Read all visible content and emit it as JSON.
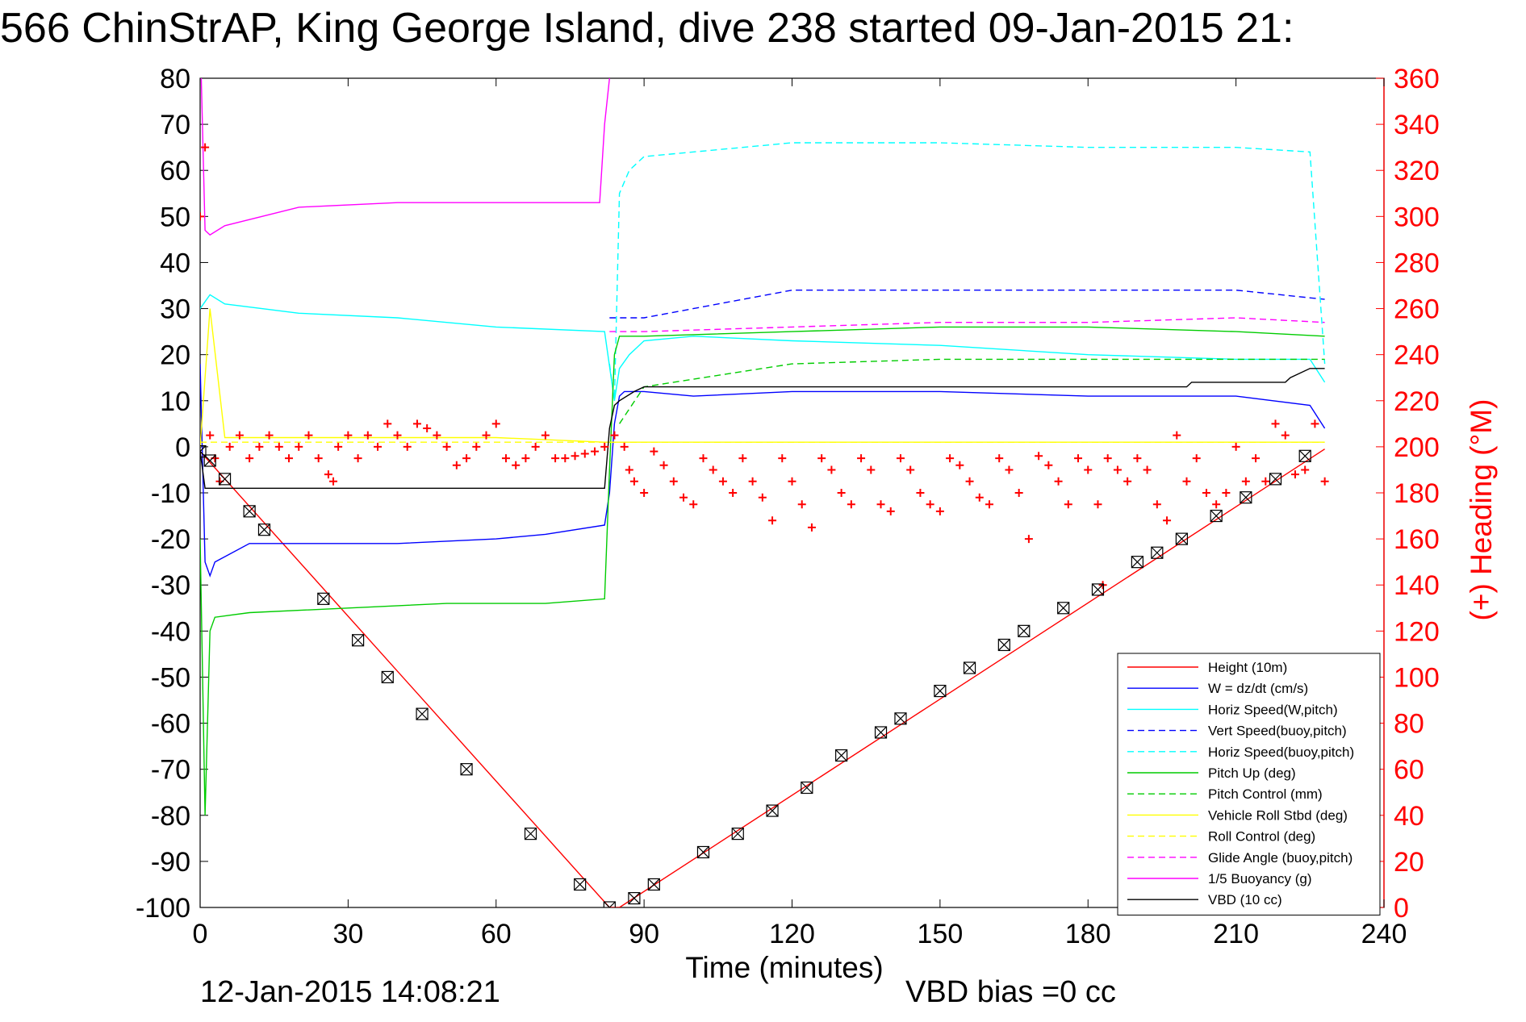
{
  "chart_data": {
    "type": "line",
    "title": "566 ChinStrAP, King George Island, dive 238 started 09-Jan-2015 21:",
    "xlabel": "Time (minutes)",
    "ylabel": "",
    "y2label": "(+) Heading (°M)",
    "xlim": [
      0,
      240
    ],
    "ylim": [
      -100,
      80
    ],
    "y2lim": [
      0,
      360
    ],
    "x_ticks": [
      "0",
      "30",
      "60",
      "90",
      "120",
      "150",
      "180",
      "210",
      "240"
    ],
    "y_ticks": [
      "80",
      "70",
      "60",
      "50",
      "40",
      "30",
      "20",
      "10",
      "0",
      "-10",
      "-20",
      "-30",
      "-40",
      "-50",
      "-60",
      "-70",
      "-80",
      "-90",
      "-100"
    ],
    "y2_ticks": [
      "360",
      "340",
      "320",
      "300",
      "280",
      "260",
      "240",
      "220",
      "200",
      "180",
      "160",
      "140",
      "120",
      "100",
      "80",
      "60",
      "40",
      "20",
      "0"
    ],
    "footer_left": "12-Jan-2015 14:08:21",
    "footer_right": "VBD bias =0 cc",
    "grid": false,
    "legend_position": "lower-right",
    "series": [
      {
        "name": "Height (10m)",
        "color": "#ff0000",
        "style": "solid",
        "x": [
          0,
          83,
          85,
          228
        ],
        "y": [
          -1,
          -100,
          -100,
          -0.5
        ]
      },
      {
        "name": "W = dz/dt (cm/s)",
        "color": "#0000ff",
        "style": "solid",
        "x": [
          0,
          1,
          2,
          3,
          10,
          20,
          40,
          60,
          70,
          82,
          83,
          84,
          85,
          86,
          90,
          100,
          120,
          150,
          180,
          210,
          225,
          228
        ],
        "y": [
          18,
          -25,
          -28,
          -25,
          -21,
          -21,
          -21,
          -20,
          -19,
          -17,
          -10,
          5,
          11,
          12,
          12,
          11,
          12,
          12,
          11,
          11,
          9,
          4
        ]
      },
      {
        "name": "Horiz Speed(W,pitch)",
        "color": "#00ffff",
        "style": "solid",
        "x": [
          0,
          2,
          5,
          20,
          40,
          60,
          82,
          84,
          85,
          87,
          90,
          100,
          120,
          150,
          180,
          210,
          225,
          228
        ],
        "y": [
          30,
          33,
          31,
          29,
          28,
          26,
          25,
          10,
          17,
          20,
          23,
          24,
          23,
          22,
          20,
          19,
          19,
          14
        ]
      },
      {
        "name": "Vert Speed(buoy,pitch)",
        "color": "#0000ff",
        "style": "dashed",
        "x": [
          83,
          85,
          90,
          120,
          150,
          180,
          210,
          228
        ],
        "y": [
          28,
          28,
          28,
          34,
          34,
          34,
          34,
          32
        ]
      },
      {
        "name": "Horiz Speed(buoy,pitch)",
        "color": "#00ffff",
        "style": "dashed",
        "x": [
          83,
          84,
          85,
          87,
          90,
          120,
          150,
          180,
          210,
          225,
          228
        ],
        "y": [
          18,
          10,
          55,
          60,
          63,
          66,
          66,
          65,
          65,
          64,
          18
        ]
      },
      {
        "name": "Pitch Up (deg)",
        "color": "#00cc00",
        "style": "solid",
        "x": [
          0,
          1,
          2,
          3,
          10,
          30,
          50,
          70,
          82,
          83,
          84,
          85,
          90,
          120,
          150,
          180,
          210,
          228
        ],
        "y": [
          -20,
          -80,
          -40,
          -37,
          -36,
          -35,
          -34,
          -34,
          -33,
          -5,
          20,
          24,
          24,
          25,
          26,
          26,
          25,
          24
        ]
      },
      {
        "name": "Pitch Control (mm)",
        "color": "#00cc00",
        "style": "dashed",
        "x": [
          85,
          90,
          120,
          150,
          180,
          210,
          228
        ],
        "y": [
          5,
          13,
          18,
          19,
          19,
          19,
          19
        ]
      },
      {
        "name": "Vehicle Roll Stbd (deg)",
        "color": "#ffff00",
        "style": "solid",
        "x": [
          0,
          2,
          5,
          10,
          30,
          60,
          82,
          85,
          90,
          120,
          150,
          180,
          210,
          228
        ],
        "y": [
          0,
          30,
          2,
          2,
          2,
          2,
          1,
          1,
          1,
          1,
          1,
          1,
          1,
          1
        ]
      },
      {
        "name": "Roll Control (deg)",
        "color": "#ffff00",
        "style": "dashed",
        "x": [
          0,
          82,
          83,
          228
        ],
        "y": [
          1,
          1,
          1,
          1
        ]
      },
      {
        "name": "Glide Angle (buoy,pitch)",
        "color": "#ff00ff",
        "style": "dashed",
        "x": [
          83,
          90,
          120,
          150,
          180,
          210,
          228
        ],
        "y": [
          25,
          25,
          26,
          27,
          27,
          28,
          27
        ]
      },
      {
        "name": "1/5 Buoyancy (g)",
        "color": "#ff00ff",
        "style": "solid",
        "x": [
          0,
          1,
          2,
          5,
          20,
          40,
          60,
          80,
          81,
          82,
          83
        ],
        "y": [
          90,
          47,
          46,
          48,
          52,
          53,
          53,
          53,
          53,
          70,
          80
        ]
      },
      {
        "name": "VBD (10 cc)",
        "color": "#000000",
        "style": "solid",
        "x": [
          0,
          1,
          2,
          82,
          83,
          84,
          85,
          88,
          90,
          150,
          200,
          201,
          220,
          221,
          225,
          228
        ],
        "y": [
          -1,
          -9,
          -9,
          -9,
          4,
          9,
          10,
          12,
          13,
          13,
          13,
          14,
          14,
          15,
          17,
          17
        ]
      }
    ],
    "heading_series": {
      "name": "(+) Heading (°M)",
      "color": "#ff0000",
      "marker": "+",
      "x": [
        0,
        1,
        2,
        3,
        4,
        6,
        8,
        10,
        12,
        14,
        16,
        18,
        20,
        22,
        24,
        26,
        27,
        28,
        30,
        32,
        34,
        36,
        38,
        40,
        42,
        44,
        46,
        48,
        50,
        52,
        54,
        56,
        58,
        60,
        62,
        64,
        66,
        68,
        70,
        72,
        74,
        76,
        78,
        80,
        82,
        84,
        86,
        87,
        88,
        90,
        92,
        94,
        96,
        98,
        100,
        102,
        104,
        106,
        108,
        110,
        112,
        114,
        116,
        118,
        120,
        122,
        124,
        126,
        128,
        130,
        132,
        134,
        136,
        138,
        140,
        142,
        144,
        146,
        148,
        150,
        152,
        154,
        156,
        158,
        160,
        162,
        164,
        166,
        168,
        170,
        172,
        174,
        176,
        178,
        180,
        182,
        183,
        184,
        186,
        188,
        190,
        192,
        194,
        196,
        198,
        200,
        202,
        204,
        206,
        208,
        210,
        212,
        214,
        216,
        218,
        220,
        222,
        224,
        226,
        228
      ],
      "y": [
        300,
        330,
        205,
        195,
        185,
        200,
        205,
        195,
        200,
        205,
        200,
        195,
        200,
        205,
        195,
        188,
        185,
        200,
        205,
        195,
        205,
        200,
        210,
        205,
        200,
        210,
        208,
        205,
        200,
        192,
        195,
        200,
        205,
        210,
        195,
        192,
        195,
        200,
        205,
        195,
        195,
        196,
        197,
        198,
        200,
        205,
        200,
        190,
        185,
        180,
        198,
        192,
        185,
        178,
        175,
        195,
        190,
        185,
        180,
        195,
        185,
        178,
        168,
        195,
        185,
        175,
        165,
        195,
        190,
        180,
        175,
        195,
        190,
        175,
        172,
        195,
        190,
        180,
        175,
        172,
        195,
        192,
        185,
        178,
        175,
        195,
        190,
        180,
        160,
        196,
        192,
        185,
        175,
        195,
        190,
        175,
        140,
        195,
        190,
        185,
        195,
        190,
        175,
        168,
        205,
        185,
        195,
        180,
        175,
        180,
        200,
        185,
        195,
        185,
        210,
        205,
        188,
        190,
        210,
        185
      ]
    },
    "marker_points": {
      "marker": "box-x",
      "x": [
        0,
        2,
        5,
        10,
        13,
        25,
        32,
        38,
        45,
        54,
        67,
        77,
        83,
        88,
        92,
        102,
        109,
        116,
        123,
        130,
        138,
        142,
        150,
        156,
        163,
        167,
        175,
        182,
        190,
        194,
        199,
        206,
        212,
        218,
        224
      ],
      "y": [
        -1,
        -3,
        -7,
        -14,
        -18,
        -33,
        -42,
        -50,
        -58,
        -70,
        -84,
        -95,
        -100,
        -98,
        -95,
        -88,
        -84,
        -79,
        -74,
        -67,
        -62,
        -59,
        -53,
        -48,
        -43,
        -40,
        -35,
        -31,
        -25,
        -23,
        -20,
        -15,
        -11,
        -7,
        -2
      ]
    }
  }
}
